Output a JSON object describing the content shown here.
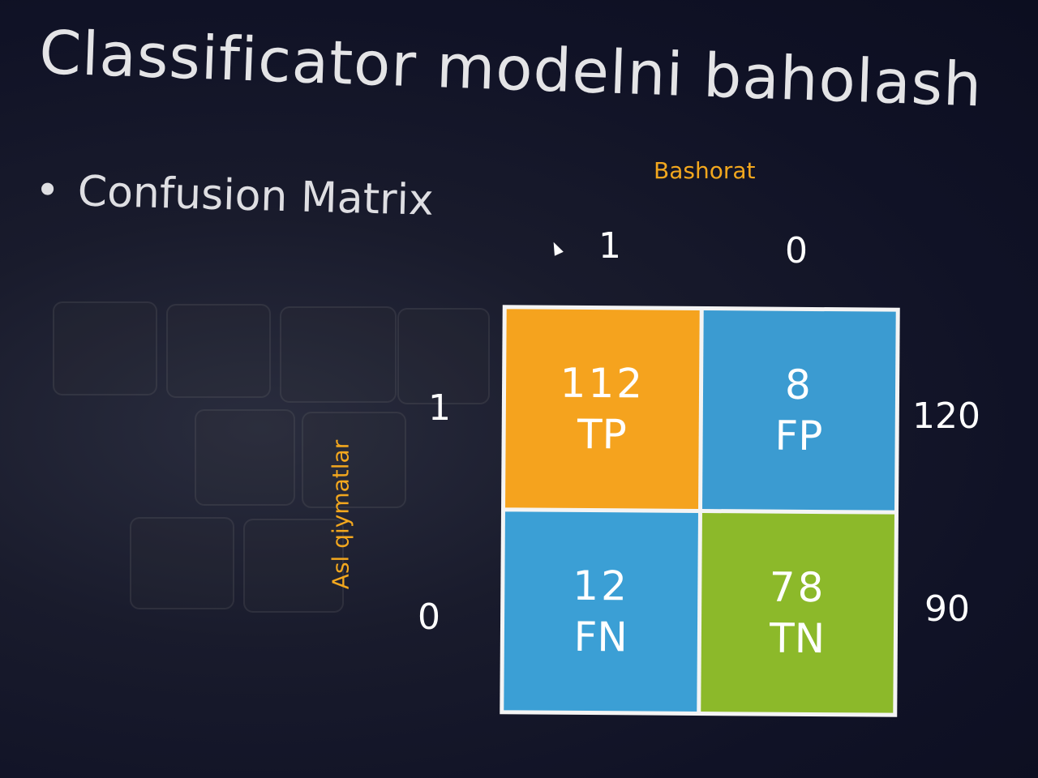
{
  "slide": {
    "title": "Classificator modelni baholash",
    "bullet": "Confusion Matrix",
    "bullet_marker": "•"
  },
  "matrix": {
    "predicted_title": "Bashorat",
    "actual_title": "Asl qiymatlar",
    "predicted_labels": [
      "1",
      "0"
    ],
    "actual_labels": [
      "1",
      "0"
    ],
    "row_totals": [
      "120",
      "90"
    ],
    "cells": {
      "tp": {
        "value": "112",
        "label": "TP",
        "color": "#f5a31e"
      },
      "fp": {
        "value": "8",
        "label": "FP",
        "color": "#3b9bd1"
      },
      "fn": {
        "value": "12",
        "label": "FN",
        "color": "#3b9fd5"
      },
      "tn": {
        "value": "78",
        "label": "TN",
        "color": "#8cb92a"
      }
    },
    "axis_title_color": "#f2a71e"
  }
}
